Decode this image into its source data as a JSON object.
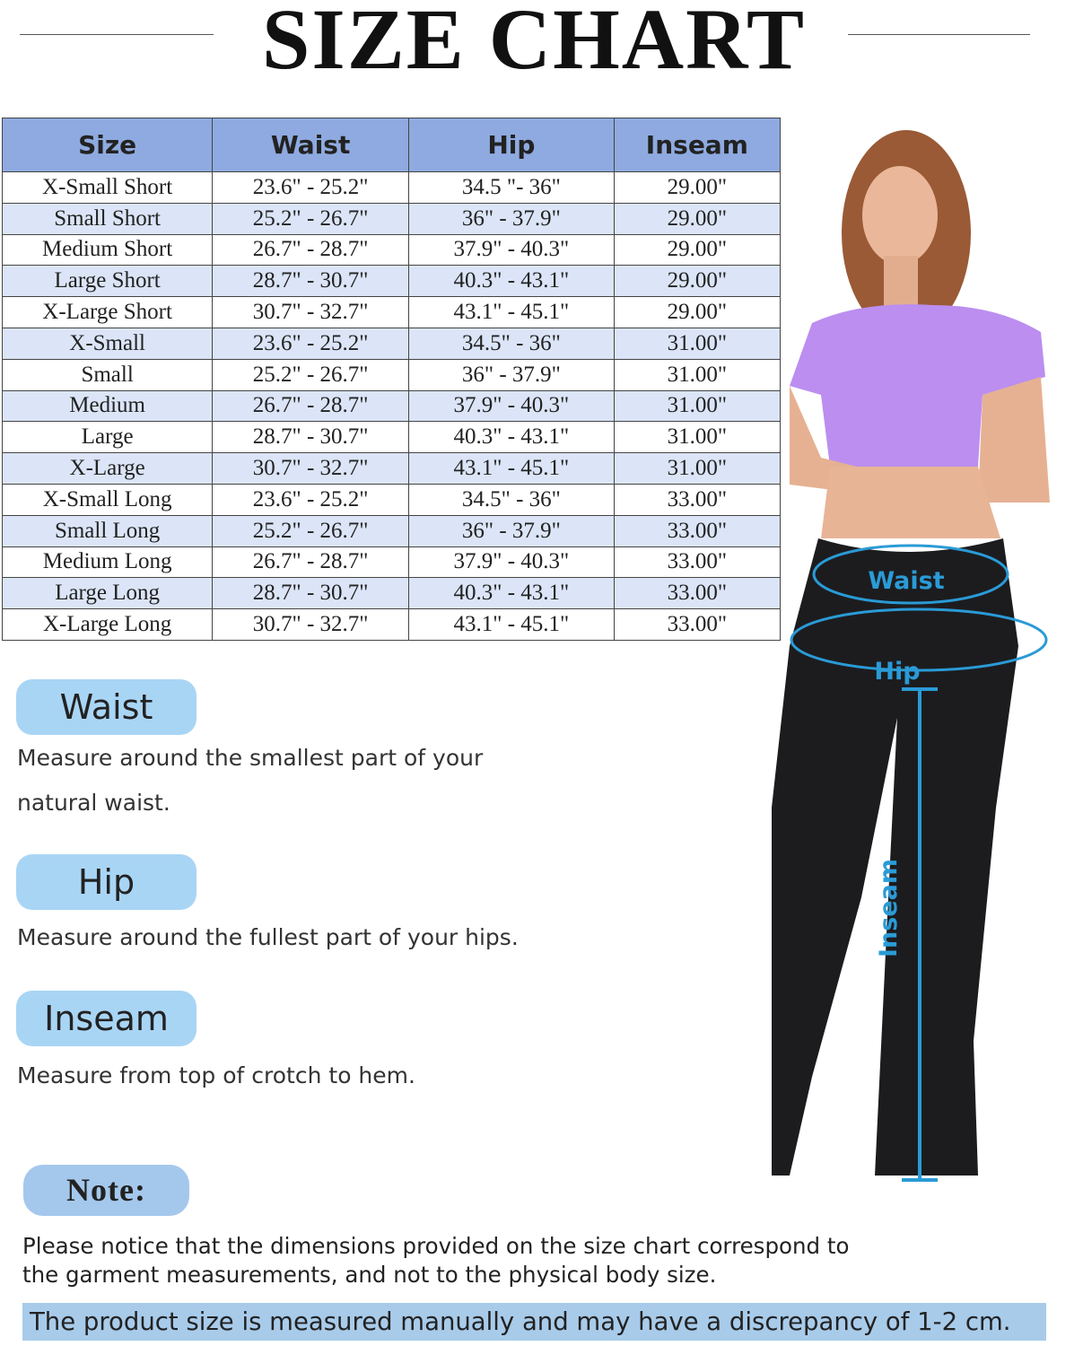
{
  "header": {
    "title": "SIZE CHART"
  },
  "table": {
    "columns": [
      "Size",
      "Waist",
      "Hip",
      "Inseam"
    ],
    "rows": [
      [
        "X-Small Short",
        "23.6\" - 25.2\"",
        "34.5 \"- 36\"",
        "29.00\""
      ],
      [
        "Small Short",
        "25.2\" - 26.7\"",
        "36\" - 37.9\"",
        "29.00\""
      ],
      [
        "Medium Short",
        "26.7\" - 28.7\"",
        "37.9\" - 40.3\"",
        "29.00\""
      ],
      [
        "Large Short",
        "28.7\" - 30.7\"",
        "40.3\" - 43.1\"",
        "29.00\""
      ],
      [
        "X-Large Short",
        "30.7\" - 32.7\"",
        "43.1\" - 45.1\"",
        "29.00\""
      ],
      [
        "X-Small",
        "23.6\" - 25.2\"",
        "34.5\" - 36\"",
        "31.00\""
      ],
      [
        "Small",
        "25.2\" - 26.7\"",
        "36\" - 37.9\"",
        "31.00\""
      ],
      [
        "Medium",
        "26.7\" - 28.7\"",
        "37.9\" - 40.3\"",
        "31.00\""
      ],
      [
        "Large",
        "28.7\" - 30.7\"",
        "40.3\" - 43.1\"",
        "31.00\""
      ],
      [
        "X-Large",
        "30.7\" - 32.7\"",
        "43.1\" - 45.1\"",
        "31.00\""
      ],
      [
        "X-Small Long",
        "23.6\" - 25.2\"",
        "34.5\" - 36\"",
        "33.00\""
      ],
      [
        "Small Long",
        "25.2\" - 26.7\"",
        "36\" - 37.9\"",
        "33.00\""
      ],
      [
        "Medium Long",
        "26.7\" - 28.7\"",
        "37.9\" - 40.3\"",
        "33.00\""
      ],
      [
        "Large Long",
        "28.7\" - 30.7\"",
        "40.3\" - 43.1\"",
        "33.00\""
      ],
      [
        "X-Large Long",
        "30.7\" - 32.7\"",
        "43.1\" - 45.1\"",
        "33.00\""
      ]
    ]
  },
  "sections": [
    {
      "label": "Waist",
      "text": "Measure around the smallest part of your natural waist."
    },
    {
      "label": "Hip",
      "text": "Measure around the fullest part of your hips."
    },
    {
      "label": "Inseam",
      "text": "Measure from top of crotch to hem."
    }
  ],
  "figure_labels": {
    "waist": "Waist",
    "hip": "Hip",
    "inseam": "Inseam"
  },
  "note": {
    "label": "Note:",
    "text": "Please notice that the dimensions provided on the size chart correspond to the garment measurements, and not to the physical body size.",
    "highlight": "The product size is measured manually and may have a discrepancy of 1-2 cm."
  }
}
